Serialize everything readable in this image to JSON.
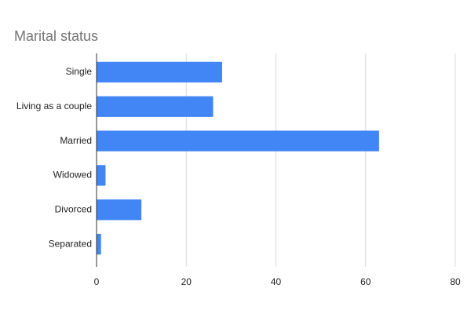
{
  "chart_data": {
    "type": "bar",
    "orientation": "horizontal",
    "title": "Marital status",
    "categories": [
      "Single",
      "Living as a couple",
      "Married",
      "Widowed",
      "Divorced",
      "Separated"
    ],
    "values": [
      28,
      26,
      63,
      2,
      10,
      1
    ],
    "color": "#4285f4",
    "xlim": [
      0,
      80
    ],
    "xticks": [
      0,
      20,
      40,
      60,
      80
    ],
    "grid": true
  }
}
